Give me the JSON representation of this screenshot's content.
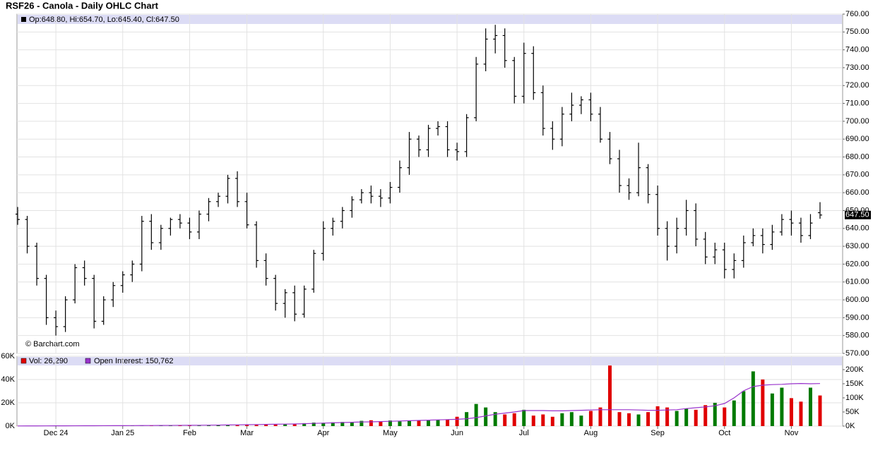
{
  "chart_data": [
    {
      "type": "ohlc",
      "title": "RSF26 - Canola - Daily OHLC Chart",
      "legend_text": "Op:648.80, Hi:654.70, Lo:645.40, Cl:647.50",
      "credit": "© Barchart.com",
      "color": "#000000",
      "grid": true,
      "open": [
        648,
        645,
        630,
        612,
        590,
        585,
        600,
        618,
        612,
        588,
        600,
        608,
        614,
        620,
        644,
        632,
        640,
        645,
        643,
        638,
        648,
        655,
        658,
        668,
        655,
        642,
        622,
        612,
        598,
        604,
        592,
        606,
        626,
        640,
        644,
        650,
        656,
        660,
        658,
        657,
        663,
        674,
        690,
        684,
        696,
        697,
        684,
        683,
        702,
        732,
        746,
        748,
        734,
        714,
        738,
        716,
        696,
        690,
        704,
        709,
        712,
        704,
        690,
        679,
        664,
        660,
        674,
        659,
        640,
        630,
        640,
        650,
        634,
        624,
        628,
        617,
        622,
        632,
        636,
        631,
        638,
        645,
        643,
        636,
        648.8
      ],
      "high": [
        652,
        647,
        632,
        614,
        594,
        602,
        620,
        622,
        614,
        602,
        610,
        616,
        622,
        647,
        648,
        642,
        646,
        648,
        646,
        650,
        657,
        660,
        670,
        672,
        660,
        644,
        626,
        614,
        606,
        608,
        608,
        628,
        644,
        646,
        652,
        658,
        662,
        664,
        662,
        666,
        678,
        694,
        692,
        698,
        700,
        700,
        688,
        704,
        736,
        752,
        754,
        752,
        736,
        744,
        742,
        720,
        700,
        708,
        716,
        714,
        716,
        708,
        694,
        684,
        668,
        688,
        676,
        664,
        644,
        646,
        656,
        654,
        638,
        632,
        632,
        626,
        636,
        640,
        640,
        642,
        648,
        650,
        646,
        648,
        654.7
      ],
      "low": [
        642,
        626,
        608,
        586,
        580,
        582,
        598,
        608,
        584,
        586,
        596,
        604,
        610,
        616,
        628,
        628,
        636,
        640,
        634,
        634,
        644,
        652,
        654,
        652,
        640,
        618,
        608,
        594,
        590,
        588,
        590,
        604,
        622,
        636,
        640,
        646,
        654,
        654,
        652,
        654,
        660,
        670,
        680,
        680,
        692,
        680,
        678,
        680,
        700,
        728,
        738,
        730,
        710,
        710,
        712,
        692,
        684,
        686,
        700,
        704,
        700,
        688,
        676,
        660,
        656,
        658,
        654,
        636,
        622,
        626,
        636,
        630,
        620,
        620,
        612,
        612,
        618,
        630,
        626,
        628,
        636,
        636,
        632,
        634,
        645.4
      ],
      "close": [
        645,
        630,
        612,
        590,
        585,
        600,
        618,
        612,
        588,
        600,
        608,
        614,
        620,
        644,
        632,
        640,
        645,
        643,
        638,
        648,
        655,
        658,
        668,
        655,
        642,
        622,
        612,
        598,
        604,
        592,
        606,
        626,
        640,
        644,
        650,
        656,
        660,
        658,
        657,
        663,
        674,
        690,
        684,
        696,
        697,
        684,
        683,
        702,
        732,
        746,
        748,
        734,
        714,
        738,
        716,
        696,
        690,
        704,
        709,
        712,
        704,
        690,
        679,
        664,
        660,
        674,
        659,
        640,
        630,
        640,
        650,
        634,
        624,
        628,
        617,
        622,
        632,
        636,
        631,
        638,
        645,
        643,
        636,
        643,
        647.5
      ],
      "ylim": [
        570,
        760
      ],
      "yticks": [
        {
          "value": 570,
          "label": "570.00"
        },
        {
          "value": 580,
          "label": "580.00"
        },
        {
          "value": 590,
          "label": "590.00"
        },
        {
          "value": 600,
          "label": "600.00"
        },
        {
          "value": 610,
          "label": "610.00"
        },
        {
          "value": 620,
          "label": "620.00"
        },
        {
          "value": 630,
          "label": "630.00"
        },
        {
          "value": 640,
          "label": "640.00"
        },
        {
          "value": 650,
          "label": "650.00"
        },
        {
          "value": 660,
          "label": "660.00"
        },
        {
          "value": 670,
          "label": "670.00"
        },
        {
          "value": 680,
          "label": "680.00"
        },
        {
          "value": 690,
          "label": "690.00"
        },
        {
          "value": 700,
          "label": "700.00"
        },
        {
          "value": 710,
          "label": "710.00"
        },
        {
          "value": 720,
          "label": "720.00"
        },
        {
          "value": 730,
          "label": "730.00"
        },
        {
          "value": 740,
          "label": "740.00"
        },
        {
          "value": 750,
          "label": "750.00"
        },
        {
          "value": 760,
          "label": "760.00"
        }
      ],
      "last_price": {
        "value": 647.5,
        "label": "647.50"
      }
    },
    {
      "type": "volume",
      "grid": true,
      "categories": [
        null,
        null,
        null,
        null,
        "Dec 24",
        null,
        null,
        null,
        null,
        null,
        null,
        "Jan 25",
        null,
        null,
        null,
        null,
        null,
        null,
        "Feb",
        null,
        null,
        null,
        null,
        null,
        "Mar",
        null,
        null,
        null,
        null,
        null,
        null,
        null,
        "Apr",
        null,
        null,
        null,
        null,
        null,
        null,
        "May",
        null,
        null,
        null,
        null,
        null,
        null,
        "Jun",
        null,
        null,
        null,
        null,
        null,
        null,
        "Jul",
        null,
        null,
        null,
        null,
        null,
        null,
        "Aug",
        null,
        null,
        null,
        null,
        null,
        null,
        "Sep",
        null,
        null,
        null,
        null,
        null,
        null,
        "Oct",
        null,
        null,
        null,
        null,
        null,
        null,
        "Nov",
        null,
        null,
        null
      ],
      "series": [
        {
          "name": "Vol: 26,290",
          "color": "#e00000",
          "up_color": "#007a00",
          "values": [
            100,
            100,
            150,
            200,
            100,
            150,
            200,
            150,
            200,
            150,
            200,
            250,
            300,
            250,
            300,
            350,
            300,
            400,
            350,
            400,
            500,
            600,
            700,
            800,
            900,
            1000,
            1200,
            1500,
            1800,
            2000,
            2500,
            3000,
            2800,
            3200,
            3500,
            3000,
            4500,
            5000,
            4200,
            4800,
            4000,
            4500,
            5000,
            4800,
            5200,
            5500,
            8000,
            12000,
            19000,
            16000,
            12000,
            10000,
            11000,
            14000,
            9000,
            10000,
            8000,
            11000,
            12000,
            9000,
            13000,
            16000,
            52000,
            12000,
            11000,
            10000,
            12000,
            17000,
            16000,
            13000,
            15000,
            14000,
            18000,
            20000,
            16000,
            22000,
            30000,
            47000,
            40000,
            28000,
            33000,
            24000,
            21000,
            33000,
            26290
          ]
        },
        {
          "name": "Open Interest: 150,762",
          "color": "#9933cc",
          "axis": "y2",
          "values": [
            500,
            600,
            700,
            800,
            900,
            1000,
            1100,
            1200,
            1300,
            1400,
            1500,
            1600,
            1700,
            1900,
            2000,
            2200,
            2400,
            2600,
            2800,
            3000,
            3300,
            3600,
            4000,
            4500,
            5000,
            5500,
            6000,
            6500,
            7000,
            7500,
            8500,
            9500,
            10500,
            11500,
            12500,
            13500,
            14500,
            15000,
            16000,
            17000,
            18000,
            19000,
            20000,
            21000,
            22000,
            23000,
            24000,
            26000,
            30000,
            36000,
            42000,
            46000,
            50000,
            55000,
            55000,
            55000,
            54000,
            54000,
            55000,
            56000,
            57000,
            58000,
            58000,
            58000,
            58000,
            57000,
            56000,
            56000,
            57000,
            58000,
            62000,
            65000,
            68000,
            72000,
            80000,
            100000,
            125000,
            140000,
            145000,
            147000,
            148000,
            150000,
            151000,
            150000,
            150762
          ]
        }
      ],
      "ylim": [
        0,
        60000
      ],
      "yticks": [
        {
          "value": 0,
          "label": "0K"
        },
        {
          "value": 20000,
          "label": "20K"
        },
        {
          "value": 40000,
          "label": "40K"
        },
        {
          "value": 60000,
          "label": "60K"
        }
      ],
      "y2lim": [
        0,
        247500
      ],
      "y2ticks": [
        {
          "value": 0,
          "label": "0K"
        },
        {
          "value": 50000,
          "label": "50K"
        },
        {
          "value": 100000,
          "label": "100K"
        },
        {
          "value": 150000,
          "label": "150K"
        },
        {
          "value": 200000,
          "label": "200K"
        }
      ]
    }
  ]
}
